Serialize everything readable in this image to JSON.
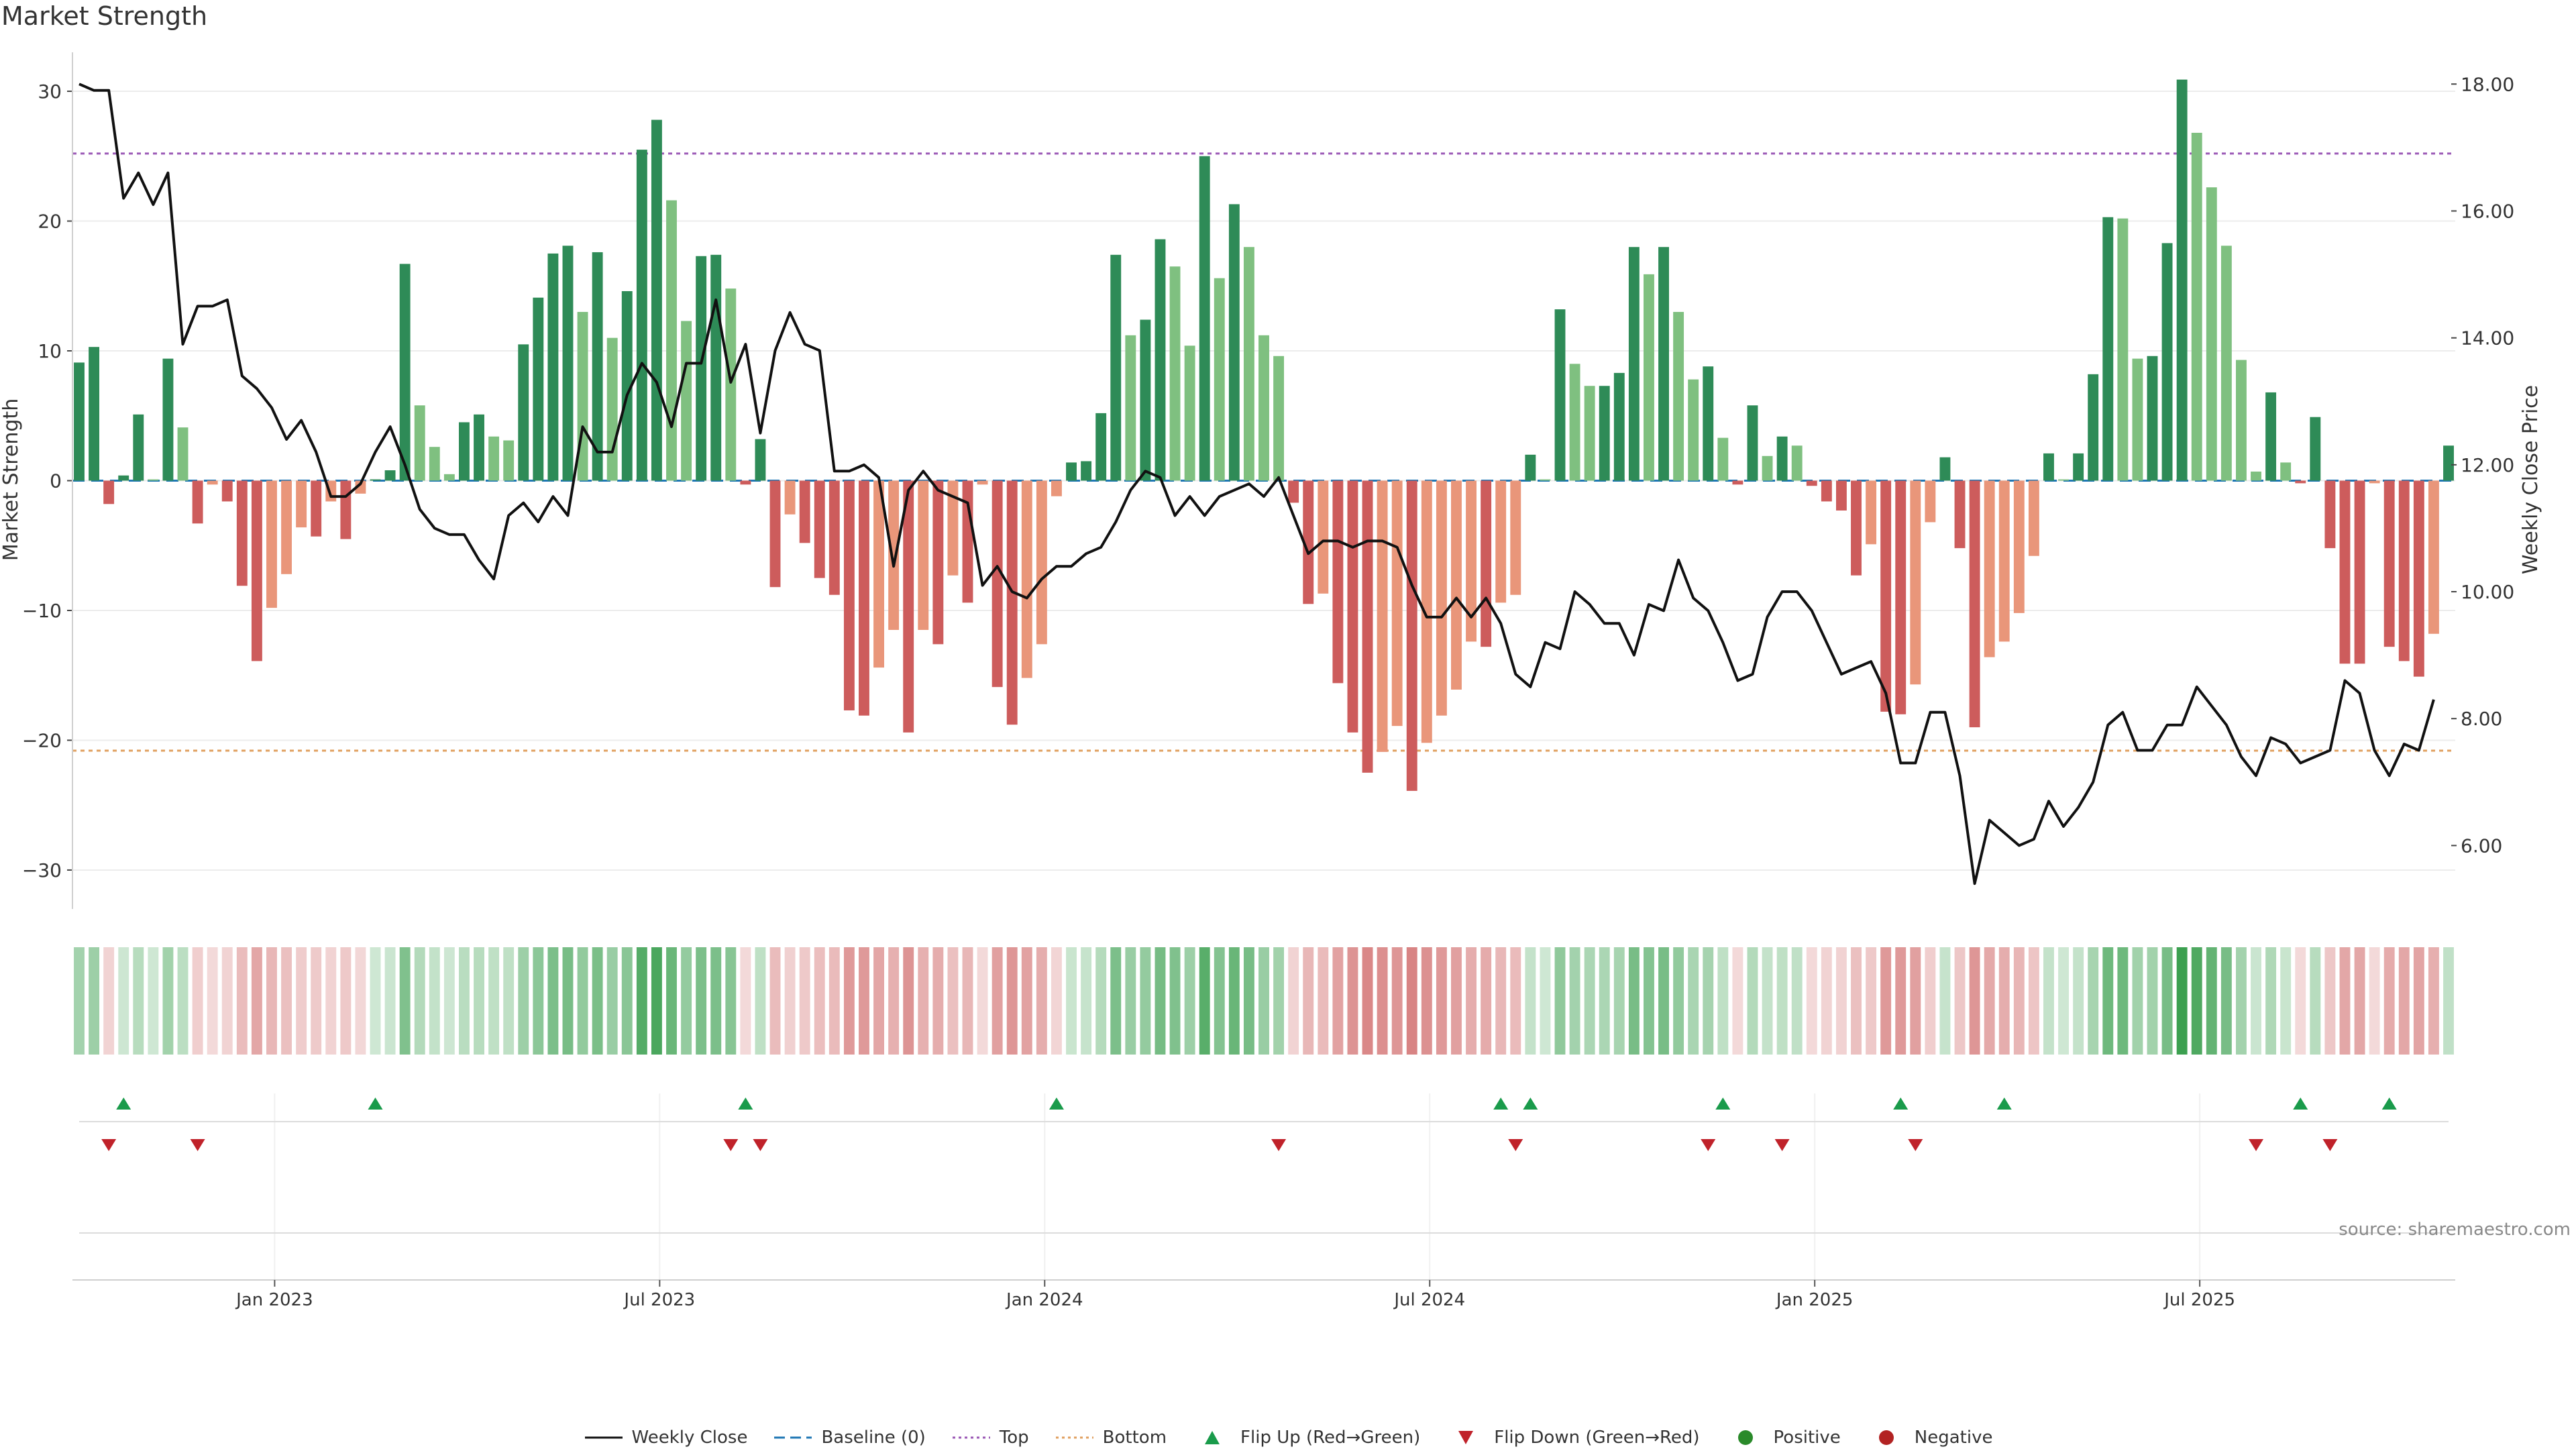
{
  "title": "Market Strength",
  "source": "source: sharemaestro.com",
  "colors": {
    "pos_strong": "#2e8b57",
    "pos_light": "#7fc080",
    "neg_strong": "#cd5c5c",
    "neg_light": "#e9967a",
    "price_line": "#111111",
    "top_line": "#9b59b6",
    "bottom_line": "#e0a060",
    "baseline": "#1f77b4",
    "flip_up": "#1a9b4b",
    "flip_down": "#c0222a"
  },
  "chart_data": {
    "type": "bar",
    "title": "Market Strength",
    "ylabel": "Market Strength",
    "y2label": "Weekly Close Price",
    "ylim": [
      -33,
      33
    ],
    "y2lim": [
      5.0,
      18.5
    ],
    "yticks": [
      "30",
      "20",
      "10",
      "0",
      "−10",
      "−20",
      "−30"
    ],
    "y2ticks": [
      "18.00",
      "16.00",
      "14.00",
      "12.00",
      "10.00",
      "8.00",
      "6.00"
    ],
    "xticks": [
      "Jan 2023",
      "Jul 2023",
      "Jan 2024",
      "Jul 2024",
      "Jan 2025",
      "Jul 2025"
    ],
    "top_level": 25.2,
    "bottom_level": -20.8,
    "series": [
      {
        "name": "Market Strength",
        "values": [
          9.1,
          10.3,
          -1.8,
          0.4,
          5.1,
          0.1,
          9.4,
          4.1,
          -3.3,
          -0.3,
          -1.6,
          -8.1,
          -13.9,
          -9.8,
          -7.2,
          -3.6,
          -4.3,
          -1.6,
          -4.5,
          -1.0,
          0.1,
          0.8,
          16.7,
          5.8,
          2.6,
          0.5,
          4.5,
          5.1,
          3.4,
          3.1,
          10.5,
          14.1,
          17.5,
          18.1,
          13.0,
          17.6,
          11.0,
          14.6,
          25.5,
          27.8,
          21.6,
          12.3,
          17.3,
          17.4,
          14.8,
          -0.3,
          3.2,
          -8.2,
          -2.6,
          -4.8,
          -7.5,
          -8.8,
          -17.7,
          -18.1,
          -14.4,
          -11.5,
          -19.4,
          -11.5,
          -12.6,
          -7.3,
          -9.4,
          -0.3,
          -15.9,
          -18.8,
          -15.2,
          -12.6,
          -1.2,
          1.4,
          1.5,
          5.2,
          17.4,
          11.2,
          12.4,
          18.6,
          16.5,
          10.4,
          25.0,
          15.6,
          21.3,
          18.0,
          11.2,
          9.6,
          -1.7,
          -9.5,
          -8.7,
          -15.6,
          -19.4,
          -22.5,
          -20.9,
          -18.9,
          -23.9,
          -20.2,
          -18.1,
          -16.1,
          -12.4,
          -12.8,
          -9.4,
          -8.8,
          2.0,
          0.1,
          13.2,
          9.0,
          7.3,
          7.3,
          8.3,
          18.0,
          15.9,
          18.0,
          13.0,
          7.8,
          8.8,
          3.3,
          -0.3,
          5.8,
          1.9,
          3.4,
          2.7,
          -0.4,
          -1.6,
          -2.3,
          -7.3,
          -4.9,
          -17.8,
          -18.0,
          -15.7,
          -3.2,
          1.8,
          -5.2,
          -19.0,
          -13.6,
          -12.4,
          -10.2,
          -5.8,
          2.1,
          0.1,
          2.1,
          8.2,
          20.3,
          20.2,
          9.4,
          9.6,
          18.3,
          30.9,
          26.8,
          22.6,
          18.1,
          9.3,
          0.7,
          6.8,
          1.4,
          -0.2,
          4.9,
          -5.2,
          -14.1,
          -14.1,
          -0.2,
          -12.8,
          -13.9,
          -15.1,
          -11.8,
          2.7
        ]
      },
      {
        "name": "Weekly Close",
        "values": [
          18.0,
          17.9,
          17.9,
          16.2,
          16.6,
          16.1,
          16.6,
          13.9,
          14.5,
          14.5,
          14.6,
          13.4,
          13.2,
          12.9,
          12.4,
          12.7,
          12.2,
          11.5,
          11.5,
          11.7,
          12.2,
          12.6,
          12.0,
          11.3,
          11.0,
          10.9,
          10.9,
          10.5,
          10.2,
          11.2,
          11.4,
          11.1,
          11.5,
          11.2,
          12.6,
          12.2,
          12.2,
          13.1,
          13.6,
          13.3,
          12.6,
          13.6,
          13.6,
          14.6,
          13.3,
          13.9,
          12.5,
          13.8,
          14.4,
          13.9,
          13.8,
          11.9,
          11.9,
          12.0,
          11.8,
          10.4,
          11.6,
          11.9,
          11.6,
          11.5,
          11.4,
          10.1,
          10.4,
          10.0,
          9.9,
          10.2,
          10.4,
          10.4,
          10.6,
          10.7,
          11.1,
          11.6,
          11.9,
          11.8,
          11.2,
          11.5,
          11.2,
          11.5,
          11.6,
          11.7,
          11.5,
          11.8,
          11.2,
          10.6,
          10.8,
          10.8,
          10.7,
          10.8,
          10.8,
          10.7,
          10.1,
          9.6,
          9.6,
          9.9,
          9.6,
          9.9,
          9.5,
          8.7,
          8.5,
          9.2,
          9.1,
          10.0,
          9.8,
          9.5,
          9.5,
          9.0,
          9.8,
          9.7,
          10.5,
          9.9,
          9.7,
          9.2,
          8.6,
          8.7,
          9.6,
          10.0,
          10.0,
          9.7,
          9.2,
          8.7,
          8.8,
          8.9,
          8.4,
          7.3,
          7.3,
          8.1,
          8.1,
          7.1,
          5.4,
          6.4,
          6.2,
          6.0,
          6.1,
          6.7,
          6.3,
          6.6,
          7.0,
          7.9,
          8.1,
          7.5,
          7.5,
          7.9,
          7.9,
          8.5,
          8.2,
          7.9,
          7.4,
          7.1,
          7.7,
          7.6,
          7.3,
          7.4,
          7.5,
          8.6,
          8.4,
          7.5,
          7.1,
          7.6,
          7.5,
          8.3
        ]
      }
    ],
    "flip_up_idx": [
      3,
      20,
      45,
      66,
      96,
      98,
      111,
      123,
      130,
      150,
      156
    ],
    "flip_down_idx": [
      2,
      8,
      44,
      46,
      81,
      97,
      110,
      115,
      124,
      147,
      152
    ],
    "legend": [
      "Weekly Close",
      "Baseline (0)",
      "Top",
      "Bottom",
      "Flip Up (Red→Green)",
      "Flip Down (Green→Red)",
      "Positive",
      "Negative"
    ]
  }
}
